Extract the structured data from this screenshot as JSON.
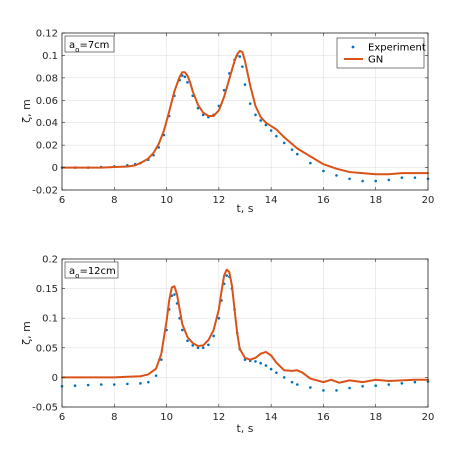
{
  "chart_data": [
    {
      "type": "line",
      "annotation": {
        "base": "a",
        "sub": "o",
        "rest": "=7cm"
      },
      "xlabel": "t, s",
      "ylabel": "ζ, m",
      "xlim": [
        6,
        20
      ],
      "ylim": [
        -0.02,
        0.12
      ],
      "xticks": [
        6,
        8,
        10,
        12,
        14,
        16,
        18,
        20
      ],
      "yticks": [
        -0.02,
        0,
        0.02,
        0.04,
        0.06,
        0.08,
        0.1,
        0.12
      ],
      "xtick_labels": [
        "6",
        "8",
        "10",
        "12",
        "14",
        "16",
        "18",
        "20"
      ],
      "ytick_labels": [
        "-0.02",
        "0",
        "0.02",
        "0.04",
        "0.06",
        "0.08",
        "0.1",
        "0.12"
      ],
      "grid": true,
      "legend": {
        "placement": "top-right",
        "entries": [
          "Experiment",
          "GN"
        ]
      },
      "series": [
        {
          "name": "Experiment",
          "style": "dots",
          "color": "#0072BD",
          "x": [
            6,
            6.5,
            7,
            7.5,
            8,
            8.5,
            8.8,
            9,
            9.3,
            9.5,
            9.7,
            9.9,
            10.1,
            10.3,
            10.5,
            10.6,
            10.7,
            10.8,
            11,
            11.2,
            11.4,
            11.6,
            11.8,
            12,
            12.2,
            12.4,
            12.6,
            12.7,
            12.8,
            12.9,
            13,
            13.2,
            13.4,
            13.6,
            13.8,
            14,
            14.2,
            14.5,
            14.8,
            15,
            15.5,
            16,
            16.5,
            17,
            17.5,
            18,
            18.5,
            19,
            19.5,
            20
          ],
          "y": [
            0,
            0,
            0,
            0.0005,
            0.001,
            0.002,
            0.003,
            0.004,
            0.007,
            0.011,
            0.018,
            0.029,
            0.046,
            0.064,
            0.078,
            0.082,
            0.081,
            0.076,
            0.064,
            0.053,
            0.047,
            0.045,
            0.047,
            0.055,
            0.069,
            0.084,
            0.096,
            0.1,
            0.099,
            0.09,
            0.074,
            0.057,
            0.047,
            0.042,
            0.038,
            0.033,
            0.028,
            0.022,
            0.016,
            0.012,
            0.004,
            -0.003,
            -0.007,
            -0.01,
            -0.012,
            -0.012,
            -0.011,
            -0.009,
            -0.009,
            -0.01
          ]
        },
        {
          "name": "GN",
          "style": "line",
          "color": "#D95319",
          "x": [
            6,
            6.5,
            7,
            7.5,
            8,
            8.5,
            8.8,
            9,
            9.3,
            9.5,
            9.7,
            9.9,
            10.1,
            10.3,
            10.5,
            10.6,
            10.7,
            10.8,
            10.9,
            11,
            11.2,
            11.4,
            11.6,
            11.8,
            12,
            12.2,
            12.4,
            12.6,
            12.7,
            12.8,
            12.9,
            13,
            13.2,
            13.4,
            13.6,
            13.8,
            14,
            14.2,
            14.5,
            14.8,
            15,
            15.5,
            16,
            16.5,
            17,
            17.5,
            18,
            18.5,
            19,
            19.5,
            20
          ],
          "y": [
            0,
            0,
            0,
            0,
            0.0005,
            0.001,
            0.002,
            0.004,
            0.008,
            0.013,
            0.021,
            0.033,
            0.05,
            0.068,
            0.081,
            0.085,
            0.085,
            0.082,
            0.076,
            0.068,
            0.056,
            0.049,
            0.046,
            0.046,
            0.051,
            0.063,
            0.079,
            0.095,
            0.101,
            0.104,
            0.103,
            0.095,
            0.073,
            0.055,
            0.045,
            0.04,
            0.037,
            0.034,
            0.027,
            0.021,
            0.017,
            0.01,
            0.003,
            -0.001,
            -0.004,
            -0.005,
            -0.006,
            -0.006,
            -0.005,
            -0.005,
            -0.005
          ]
        }
      ]
    },
    {
      "type": "line",
      "annotation": {
        "base": "a",
        "sub": "o",
        "rest": "=12cm"
      },
      "xlabel": "t, s",
      "ylabel": "ζ, m",
      "xlim": [
        6,
        20
      ],
      "ylim": [
        -0.05,
        0.2
      ],
      "xticks": [
        6,
        8,
        10,
        12,
        14,
        16,
        18,
        20
      ],
      "yticks": [
        -0.05,
        0,
        0.05,
        0.1,
        0.15,
        0.2
      ],
      "xtick_labels": [
        "6",
        "8",
        "10",
        "12",
        "14",
        "16",
        "18",
        "20"
      ],
      "ytick_labels": [
        "-0.05",
        "0",
        "0.05",
        "0.1",
        "0.15",
        "0.2"
      ],
      "grid": true,
      "series": [
        {
          "name": "Experiment",
          "style": "dots",
          "color": "#0072BD",
          "x": [
            6,
            6.5,
            7,
            7.5,
            8,
            8.5,
            9,
            9.3,
            9.6,
            9.8,
            10,
            10.1,
            10.2,
            10.3,
            10.4,
            10.5,
            10.6,
            10.8,
            11,
            11.2,
            11.4,
            11.6,
            11.8,
            12,
            12.1,
            12.2,
            12.3,
            12.4,
            12.5,
            12.6,
            12.7,
            12.8,
            13,
            13.2,
            13.4,
            13.6,
            13.8,
            14,
            14.2,
            14.5,
            14.8,
            15,
            15.5,
            16,
            16.5,
            17,
            17.5,
            18,
            18.5,
            19,
            19.5,
            20
          ],
          "y": [
            -0.015,
            -0.014,
            -0.013,
            -0.012,
            -0.012,
            -0.011,
            -0.01,
            -0.008,
            0.003,
            0.03,
            0.08,
            0.115,
            0.138,
            0.14,
            0.125,
            0.1,
            0.08,
            0.062,
            0.054,
            0.05,
            0.05,
            0.055,
            0.07,
            0.1,
            0.13,
            0.158,
            0.172,
            0.17,
            0.15,
            0.115,
            0.075,
            0.048,
            0.03,
            0.028,
            0.027,
            0.024,
            0.02,
            0.014,
            0.008,
            0,
            -0.008,
            -0.012,
            -0.017,
            -0.022,
            -0.022,
            -0.018,
            -0.015,
            -0.014,
            -0.012,
            -0.01,
            -0.008,
            -0.007
          ]
        },
        {
          "name": "GN",
          "style": "line",
          "color": "#D95319",
          "x": [
            6,
            6.5,
            7,
            7.5,
            8,
            8.5,
            9,
            9.3,
            9.6,
            9.8,
            10,
            10.1,
            10.2,
            10.3,
            10.4,
            10.5,
            10.6,
            10.8,
            11,
            11.2,
            11.4,
            11.6,
            11.8,
            12,
            12.1,
            12.2,
            12.3,
            12.4,
            12.5,
            12.6,
            12.7,
            12.8,
            13,
            13.2,
            13.4,
            13.6,
            13.8,
            14,
            14.2,
            14.5,
            14.8,
            15,
            15.2,
            15.5,
            16,
            16.3,
            16.6,
            17,
            17.5,
            18,
            18.5,
            19,
            19.5,
            20
          ],
          "y": [
            0,
            0,
            0,
            0,
            0,
            0.001,
            0.002,
            0.005,
            0.015,
            0.04,
            0.095,
            0.13,
            0.152,
            0.154,
            0.14,
            0.115,
            0.09,
            0.068,
            0.058,
            0.053,
            0.054,
            0.063,
            0.08,
            0.115,
            0.145,
            0.172,
            0.182,
            0.178,
            0.155,
            0.115,
            0.075,
            0.048,
            0.033,
            0.03,
            0.033,
            0.04,
            0.043,
            0.037,
            0.025,
            0.012,
            0.011,
            0.012,
            0.008,
            -0.002,
            -0.008,
            -0.004,
            -0.009,
            -0.005,
            -0.008,
            -0.004,
            -0.006,
            -0.005,
            -0.004,
            -0.004
          ]
        }
      ]
    }
  ]
}
